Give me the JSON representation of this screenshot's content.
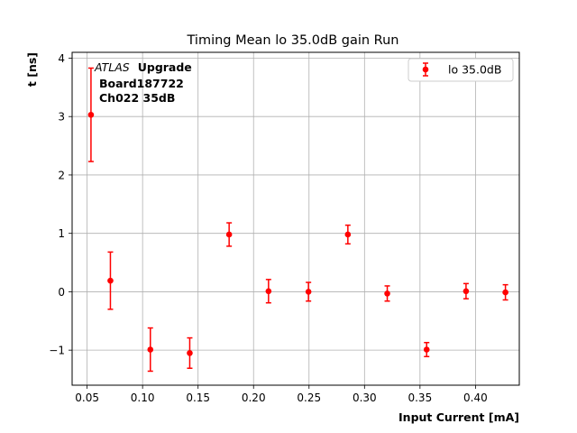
{
  "chart_data": {
    "type": "scatter",
    "title": "Timing Mean lo 35.0dB gain Run",
    "xlabel": "Input Current [mA]",
    "ylabel": "t [ns]",
    "xlim": [
      0.0365,
      0.4395
    ],
    "ylim": [
      -1.6,
      4.1
    ],
    "xticks": [
      0.05,
      0.1,
      0.15,
      0.2,
      0.25,
      0.3,
      0.35,
      0.4
    ],
    "xtick_labels": [
      "0.05",
      "0.10",
      "0.15",
      "0.20",
      "0.25",
      "0.30",
      "0.35",
      "0.40"
    ],
    "yticks": [
      -1,
      0,
      1,
      2,
      3,
      4
    ],
    "ytick_labels": [
      "−1",
      "0",
      "1",
      "2",
      "3",
      "4"
    ],
    "grid": true,
    "legend_position": "top-right",
    "annotation": {
      "experiment": "ATLAS",
      "tag": "Upgrade",
      "line2": "Board187722",
      "line3": "Ch022 35dB"
    },
    "series": [
      {
        "name": "lo 35.0dB",
        "color": "#ff0000",
        "x": [
          0.0535,
          0.071,
          0.107,
          0.1425,
          0.178,
          0.2135,
          0.2495,
          0.285,
          0.3205,
          0.356,
          0.3915,
          0.427
        ],
        "y": [
          3.03,
          0.19,
          -0.99,
          -1.05,
          0.98,
          0.01,
          0.0,
          0.98,
          -0.03,
          -0.99,
          0.01,
          -0.01
        ],
        "yerr": [
          0.8,
          0.49,
          0.37,
          0.26,
          0.2,
          0.2,
          0.16,
          0.16,
          0.13,
          0.12,
          0.13,
          0.13
        ]
      }
    ]
  }
}
